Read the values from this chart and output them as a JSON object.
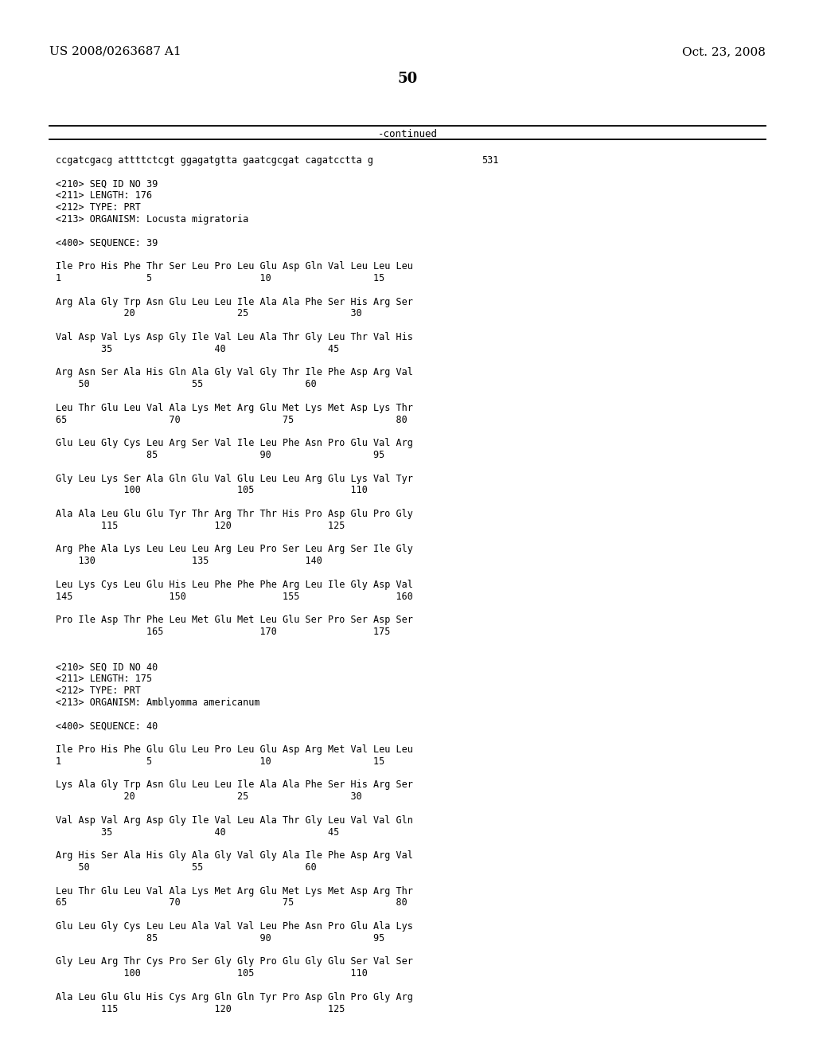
{
  "header_left": "US 2008/0263687 A1",
  "header_right": "Oct. 23, 2008",
  "page_number": "50",
  "continued_label": "-continued",
  "background_color": "#ffffff",
  "text_color": "#000000",
  "lines": [
    {
      "text": "ccgatcgacg attttctcgt ggagatgtta gaatcgcgat cagatcctta g",
      "tab": 0.595,
      "tabtext": "531"
    },
    {
      "text": ""
    },
    {
      "text": "<210> SEQ ID NO 39"
    },
    {
      "text": "<211> LENGTH: 176"
    },
    {
      "text": "<212> TYPE: PRT"
    },
    {
      "text": "<213> ORGANISM: Locusta migratoria"
    },
    {
      "text": ""
    },
    {
      "text": "<400> SEQUENCE: 39"
    },
    {
      "text": ""
    },
    {
      "text": "Ile Pro His Phe Thr Ser Leu Pro Leu Glu Asp Gln Val Leu Leu Leu"
    },
    {
      "text": "1               5                   10                  15"
    },
    {
      "text": ""
    },
    {
      "text": "Arg Ala Gly Trp Asn Glu Leu Leu Ile Ala Ala Phe Ser His Arg Ser"
    },
    {
      "text": "            20                  25                  30"
    },
    {
      "text": ""
    },
    {
      "text": "Val Asp Val Lys Asp Gly Ile Val Leu Ala Thr Gly Leu Thr Val His"
    },
    {
      "text": "        35                  40                  45"
    },
    {
      "text": ""
    },
    {
      "text": "Arg Asn Ser Ala His Gln Ala Gly Val Gly Thr Ile Phe Asp Arg Val"
    },
    {
      "text": "    50                  55                  60"
    },
    {
      "text": ""
    },
    {
      "text": "Leu Thr Glu Leu Val Ala Lys Met Arg Glu Met Lys Met Asp Lys Thr"
    },
    {
      "text": "65                  70                  75                  80"
    },
    {
      "text": ""
    },
    {
      "text": "Glu Leu Gly Cys Leu Arg Ser Val Ile Leu Phe Asn Pro Glu Val Arg"
    },
    {
      "text": "                85                  90                  95"
    },
    {
      "text": ""
    },
    {
      "text": "Gly Leu Lys Ser Ala Gln Glu Val Glu Leu Leu Arg Glu Lys Val Tyr"
    },
    {
      "text": "            100                 105                 110"
    },
    {
      "text": ""
    },
    {
      "text": "Ala Ala Leu Glu Glu Tyr Thr Arg Thr Thr His Pro Asp Glu Pro Gly"
    },
    {
      "text": "        115                 120                 125"
    },
    {
      "text": ""
    },
    {
      "text": "Arg Phe Ala Lys Leu Leu Leu Arg Leu Pro Ser Leu Arg Ser Ile Gly"
    },
    {
      "text": "    130                 135                 140"
    },
    {
      "text": ""
    },
    {
      "text": "Leu Lys Cys Leu Glu His Leu Phe Phe Phe Arg Leu Ile Gly Asp Val"
    },
    {
      "text": "145                 150                 155                 160"
    },
    {
      "text": ""
    },
    {
      "text": "Pro Ile Asp Thr Phe Leu Met Glu Met Leu Glu Ser Pro Ser Asp Ser"
    },
    {
      "text": "                165                 170                 175"
    },
    {
      "text": ""
    },
    {
      "text": ""
    },
    {
      "text": "<210> SEQ ID NO 40"
    },
    {
      "text": "<211> LENGTH: 175"
    },
    {
      "text": "<212> TYPE: PRT"
    },
    {
      "text": "<213> ORGANISM: Amblyomma americanum"
    },
    {
      "text": ""
    },
    {
      "text": "<400> SEQUENCE: 40"
    },
    {
      "text": ""
    },
    {
      "text": "Ile Pro His Phe Glu Glu Leu Pro Leu Glu Asp Arg Met Val Leu Leu"
    },
    {
      "text": "1               5                   10                  15"
    },
    {
      "text": ""
    },
    {
      "text": "Lys Ala Gly Trp Asn Glu Leu Leu Ile Ala Ala Phe Ser His Arg Ser"
    },
    {
      "text": "            20                  25                  30"
    },
    {
      "text": ""
    },
    {
      "text": "Val Asp Val Arg Asp Gly Ile Val Leu Ala Thr Gly Leu Val Val Gln"
    },
    {
      "text": "        35                  40                  45"
    },
    {
      "text": ""
    },
    {
      "text": "Arg His Ser Ala His Gly Ala Gly Val Gly Ala Ile Phe Asp Arg Val"
    },
    {
      "text": "    50                  55                  60"
    },
    {
      "text": ""
    },
    {
      "text": "Leu Thr Glu Leu Val Ala Lys Met Arg Glu Met Lys Met Asp Arg Thr"
    },
    {
      "text": "65                  70                  75                  80"
    },
    {
      "text": ""
    },
    {
      "text": "Glu Leu Gly Cys Leu Leu Ala Val Val Leu Phe Asn Pro Glu Ala Lys"
    },
    {
      "text": "                85                  90                  95"
    },
    {
      "text": ""
    },
    {
      "text": "Gly Leu Arg Thr Cys Pro Ser Gly Gly Pro Glu Gly Glu Ser Val Ser"
    },
    {
      "text": "            100                 105                 110"
    },
    {
      "text": ""
    },
    {
      "text": "Ala Leu Glu Glu His Cys Arg Gln Gln Tyr Pro Asp Gln Pro Gly Arg"
    },
    {
      "text": "        115                 120                 125"
    }
  ]
}
